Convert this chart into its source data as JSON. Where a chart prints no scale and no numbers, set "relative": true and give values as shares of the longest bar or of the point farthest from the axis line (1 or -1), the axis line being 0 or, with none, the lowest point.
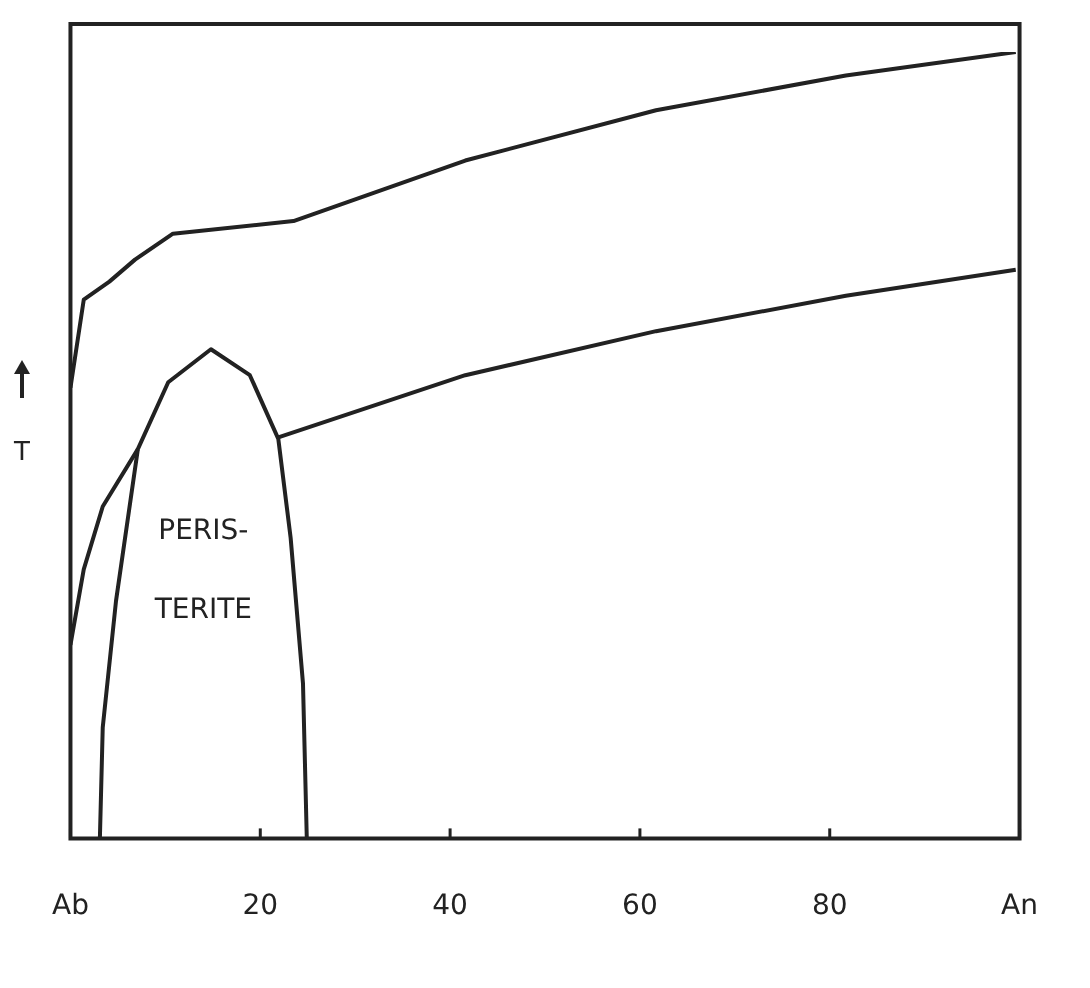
{
  "chart_data": {
    "type": "line",
    "relative": true,
    "ylabel": "T",
    "xlim": [
      0,
      100
    ],
    "xticks": [
      {
        "value": 0,
        "label": "Ab"
      },
      20,
      40,
      60,
      80,
      {
        "value": 100,
        "label": "An"
      }
    ],
    "annotations": [
      "PERIS-",
      "TERITE"
    ],
    "marker": "none",
    "line_style": "solid",
    "legend": false,
    "grid": false,
    "series": [
      {
        "color": "#222222",
        "x": [
          0,
          1.4,
          4.1,
          6.8,
          10.8,
          23.5,
          41.6,
          61.7,
          81.7,
          99.6
        ],
        "values": [
          0.573,
          0.685,
          0.708,
          0.736,
          0.769,
          0.785,
          0.862,
          0.926,
          0.97,
          1
        ]
      },
      {
        "color": "#222222",
        "x": [
          0,
          1.4,
          3.4,
          7.1,
          null,
          21.9,
          41.6,
          61.7,
          81.7,
          99.6
        ],
        "values": [
          0.246,
          0.342,
          0.422,
          0.495,
          null,
          0.51,
          0.589,
          0.645,
          0.69,
          0.723
        ]
      },
      {
        "color": "#222222",
        "x": [
          3.1,
          3.4,
          4.8,
          7.1,
          10.3,
          14.8,
          18.9,
          21.9,
          23.2,
          24.5,
          24.9
        ],
        "values": [
          0,
          0.141,
          0.302,
          0.495,
          0.58,
          0.622,
          0.589,
          0.508,
          0.382,
          0.197,
          0
        ]
      }
    ]
  }
}
